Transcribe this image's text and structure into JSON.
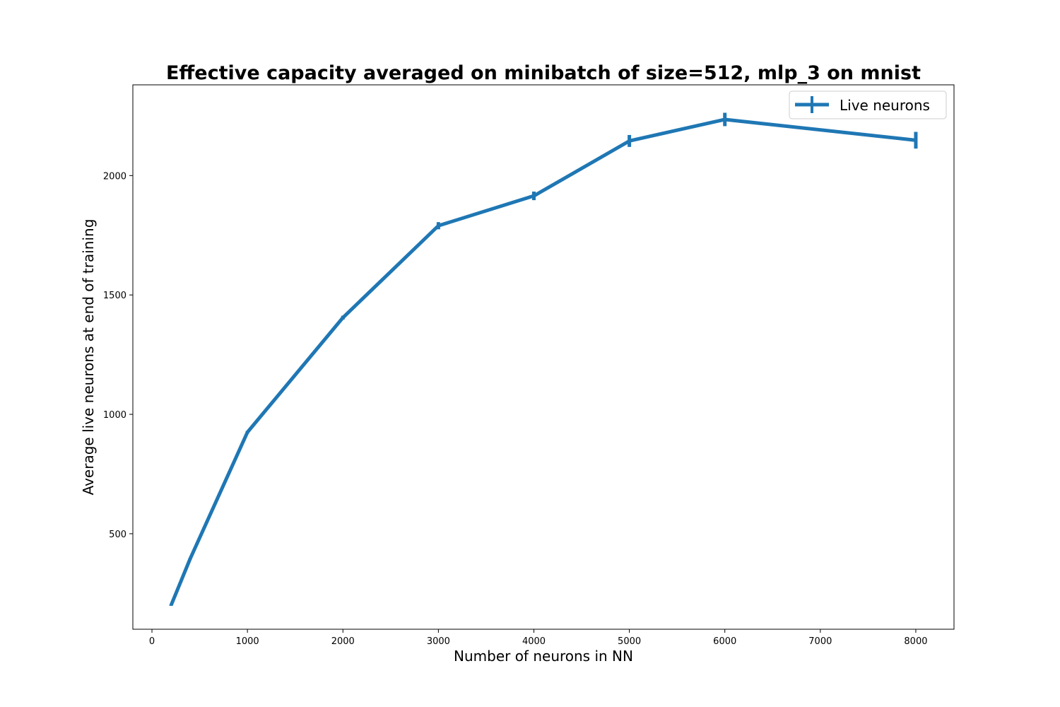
{
  "chart_data": {
    "type": "line",
    "title": "Effective capacity averaged on minibatch of size=512, mlp_3 on mnist",
    "xlabel": "Number of neurons in NN",
    "ylabel": "Average live neurons at end of training",
    "xlim": [
      -200,
      8400
    ],
    "ylim": [
      100,
      2380
    ],
    "xticks": [
      0,
      1000,
      2000,
      3000,
      4000,
      5000,
      6000,
      7000,
      8000
    ],
    "yticks": [
      500,
      1000,
      1500,
      2000
    ],
    "grid": false,
    "legend_position": "top-right",
    "series": [
      {
        "name": "Live neurons",
        "color": "#1f77b4",
        "x": [
          200,
          400,
          1000,
          2000,
          3000,
          4000,
          5000,
          6000,
          8000
        ],
        "y": [
          200,
          395,
          925,
          1405,
          1790,
          1915,
          2145,
          2235,
          2148
        ],
        "yerr": [
          2,
          3,
          5,
          8,
          15,
          18,
          25,
          28,
          35
        ]
      }
    ]
  }
}
